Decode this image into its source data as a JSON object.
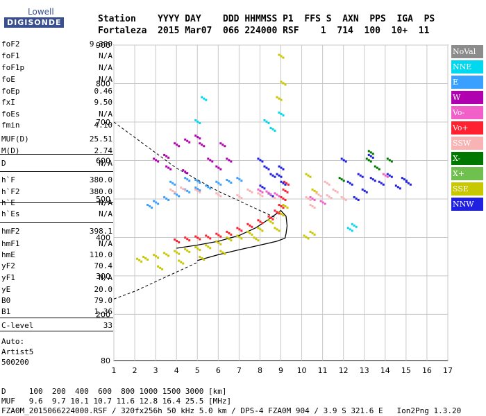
{
  "logo": {
    "top": "Lowell",
    "main": "DIGISONDE"
  },
  "header": {
    "line1": "Station    YYYY DAY    DDD HHMMSS P1  FFS S  AXN  PPS  IGA  PS",
    "line2": "Fortaleza  2015 Mar07  066 224000 RSF    1  714  100  10+  11"
  },
  "params": [
    {
      "name": "foF2",
      "value": "9.300"
    },
    {
      "name": "foF1",
      "value": "N/A"
    },
    {
      "name": "foF1p",
      "value": "N/A"
    },
    {
      "name": "foE",
      "value": "N/A"
    },
    {
      "name": "foEp",
      "value": "0.46"
    },
    {
      "name": "fxI",
      "value": "9.50"
    },
    {
      "name": "foEs",
      "value": "N/A"
    },
    {
      "name": "fmin",
      "value": "4.10"
    },
    {
      "name": "MUF(D)",
      "value": "25.51"
    },
    {
      "name": "M(D)",
      "value": "2.74"
    },
    {
      "name": "D",
      "value": "N/A"
    },
    {
      "name": "h`F",
      "value": "380.0"
    },
    {
      "name": "h`F2",
      "value": "380.0"
    },
    {
      "name": "h`E",
      "value": "N/A"
    },
    {
      "name": "h`Es",
      "value": "N/A"
    },
    {
      "name": "hmF2",
      "value": "398.1"
    },
    {
      "name": "hmF1",
      "value": "N/A"
    },
    {
      "name": "hmE",
      "value": "110.0"
    },
    {
      "name": "yF2",
      "value": "70.4"
    },
    {
      "name": "yF1",
      "value": "N/A"
    },
    {
      "name": "yE",
      "value": "20.0"
    },
    {
      "name": "B0",
      "value": "79.0"
    },
    {
      "name": "B1",
      "value": "1.36"
    },
    {
      "name": "C-level",
      "value": "33"
    }
  ],
  "autoscaling": {
    "line1": "Auto:",
    "line2": "Artist5",
    "line3": "500200"
  },
  "legend": [
    {
      "label": "NoVal",
      "color": "#8c8c8c"
    },
    {
      "label": "NNE",
      "color": "#00d8f0"
    },
    {
      "label": "E",
      "color": "#3aa0ff"
    },
    {
      "label": "W",
      "color": "#b000b0"
    },
    {
      "label": "Vo-",
      "color": "#f060c8"
    },
    {
      "label": "Vo+",
      "color": "#ff2030"
    },
    {
      "label": "SSW",
      "color": "#f8b4b4"
    },
    {
      "label": "X-",
      "color": "#007800"
    },
    {
      "label": "X+",
      "color": "#70c050"
    },
    {
      "label": "SSE",
      "color": "#c8c800"
    },
    {
      "label": "NNW",
      "color": "#2020e0"
    }
  ],
  "footer": {
    "d_line": "D     100  200  400  600  800 1000 1500 3000 [km]",
    "muf_line": "MUF   9.6  9.7 10.1 10.7 11.6 12.8 16.4 25.5 [MHz]",
    "file_line": "FZA0M_2015066224000.RSF / 320fx256h 50 kHz 5.0 km / DPS-4 FZA0M 904 / 3.9 S 321.6 E   Ion2Png 1.3.20"
  },
  "chart_data": {
    "type": "scatter",
    "xlim": [
      1,
      17
    ],
    "ylim": [
      80,
      900
    ],
    "x_ticks": [
      1,
      2,
      3,
      4,
      5,
      6,
      7,
      8,
      9,
      10,
      11,
      12,
      13,
      14,
      15,
      16,
      17
    ],
    "y_ticks": [
      80,
      200,
      300,
      400,
      500,
      600,
      700,
      800,
      900
    ],
    "grid": true,
    "series": [
      {
        "color": "#c8c800",
        "points": [
          [
            2.2,
            340
          ],
          [
            2.5,
            345
          ],
          [
            3.0,
            350
          ],
          [
            3.5,
            355
          ],
          [
            4.0,
            360
          ],
          [
            4.5,
            365
          ],
          [
            5.0,
            370
          ],
          [
            5.5,
            375
          ],
          [
            6.0,
            385
          ],
          [
            6.5,
            395
          ],
          [
            7.0,
            400
          ],
          [
            7.5,
            410
          ],
          [
            8.0,
            420
          ],
          [
            8.5,
            440
          ],
          [
            9.0,
            460
          ],
          [
            9.2,
            480
          ],
          [
            3.2,
            320
          ],
          [
            4.2,
            335
          ],
          [
            5.2,
            345
          ],
          [
            6.2,
            360
          ],
          [
            7.8,
            395
          ],
          [
            8.8,
            420
          ],
          [
            9.1,
            800
          ],
          [
            9.0,
            870
          ],
          [
            8.9,
            760
          ],
          [
            10.2,
            400
          ],
          [
            10.5,
            410
          ],
          [
            10.3,
            560
          ],
          [
            10.6,
            520
          ]
        ]
      },
      {
        "color": "#ff2030",
        "points": [
          [
            4.0,
            390
          ],
          [
            4.5,
            395
          ],
          [
            5.0,
            398
          ],
          [
            5.5,
            400
          ],
          [
            6.0,
            405
          ],
          [
            6.5,
            410
          ],
          [
            7.0,
            420
          ],
          [
            7.5,
            430
          ],
          [
            8.0,
            440
          ],
          [
            8.5,
            450
          ],
          [
            8.8,
            465
          ],
          [
            9.0,
            480
          ],
          [
            9.1,
            500
          ],
          [
            9.2,
            520
          ],
          [
            9.25,
            540
          ]
        ]
      },
      {
        "color": "#b000b0",
        "points": [
          [
            3.0,
            600
          ],
          [
            3.5,
            610
          ],
          [
            4.0,
            640
          ],
          [
            4.5,
            650
          ],
          [
            5.0,
            660
          ],
          [
            5.2,
            640
          ],
          [
            5.6,
            600
          ],
          [
            6.0,
            580
          ],
          [
            6.5,
            600
          ],
          [
            6.2,
            640
          ],
          [
            3.6,
            580
          ],
          [
            4.4,
            570
          ]
        ]
      },
      {
        "color": "#3aa0ff",
        "points": [
          [
            2.7,
            480
          ],
          [
            3.0,
            490
          ],
          [
            3.5,
            500
          ],
          [
            4.0,
            510
          ],
          [
            4.5,
            520
          ],
          [
            5.0,
            525
          ],
          [
            5.5,
            530
          ],
          [
            6.0,
            540
          ],
          [
            6.5,
            545
          ],
          [
            7.0,
            550
          ],
          [
            4.5,
            550
          ],
          [
            5.0,
            545
          ],
          [
            3.8,
            540
          ]
        ]
      },
      {
        "color": "#f8b4b4",
        "points": [
          [
            3.8,
            520
          ],
          [
            4.3,
            525
          ],
          [
            5.0,
            520
          ],
          [
            6.0,
            510
          ],
          [
            7.0,
            505
          ],
          [
            7.5,
            520
          ],
          [
            8.0,
            510
          ],
          [
            8.6,
            505
          ],
          [
            10.3,
            500
          ],
          [
            10.8,
            510
          ],
          [
            11.3,
            505
          ],
          [
            11.6,
            520
          ],
          [
            12.0,
            500
          ],
          [
            10.5,
            480
          ],
          [
            11.2,
            540
          ]
        ]
      },
      {
        "color": "#2020e0",
        "points": [
          [
            8.0,
            600
          ],
          [
            8.3,
            580
          ],
          [
            8.6,
            560
          ],
          [
            8.9,
            560
          ],
          [
            9.0,
            580
          ],
          [
            8.1,
            530
          ],
          [
            8.5,
            510
          ],
          [
            9.1,
            540
          ],
          [
            12.3,
            540
          ],
          [
            12.8,
            560
          ],
          [
            13.0,
            520
          ],
          [
            13.4,
            550
          ],
          [
            13.8,
            540
          ],
          [
            14.2,
            560
          ],
          [
            14.6,
            530
          ],
          [
            14.9,
            550
          ],
          [
            15.1,
            540
          ],
          [
            12.0,
            600
          ],
          [
            13.3,
            610
          ],
          [
            12.6,
            500
          ]
        ]
      },
      {
        "color": "#00d8f0",
        "points": [
          [
            5.0,
            700
          ],
          [
            5.3,
            760
          ],
          [
            8.3,
            700
          ],
          [
            8.6,
            680
          ],
          [
            9.0,
            720
          ],
          [
            12.3,
            420
          ],
          [
            12.5,
            430
          ]
        ]
      },
      {
        "color": "#f060c8",
        "points": [
          [
            8.0,
            520
          ],
          [
            8.4,
            515
          ],
          [
            8.8,
            510
          ],
          [
            10.5,
            500
          ],
          [
            11.0,
            490
          ],
          [
            14.0,
            560
          ]
        ]
      },
      {
        "color": "#007800",
        "points": [
          [
            13.2,
            600
          ],
          [
            13.3,
            620
          ],
          [
            13.6,
            580
          ],
          [
            11.9,
            550
          ],
          [
            14.2,
            600
          ]
        ]
      }
    ],
    "profile_solid": [
      [
        5.0,
        340
      ],
      [
        6.0,
        355
      ],
      [
        7.0,
        368
      ],
      [
        8.0,
        380
      ],
      [
        8.8,
        390
      ],
      [
        9.2,
        398
      ],
      [
        9.25,
        410
      ],
      [
        9.3,
        430
      ],
      [
        9.25,
        455
      ],
      [
        9.0,
        470
      ],
      [
        8.5,
        450
      ],
      [
        7.8,
        425
      ],
      [
        7.0,
        405
      ],
      [
        6.0,
        390
      ],
      [
        5.0,
        380
      ],
      [
        4.0,
        372
      ]
    ],
    "profile_dashed": [
      [
        1.0,
        240
      ],
      [
        2.0,
        260
      ],
      [
        3.0,
        285
      ],
      [
        4.0,
        310
      ],
      [
        5.0,
        335
      ],
      [
        1.0,
        700
      ],
      [
        2.0,
        660
      ],
      [
        3.0,
        620
      ],
      [
        4.0,
        580
      ],
      [
        5.0,
        550
      ],
      [
        6.0,
        520
      ],
      [
        7.0,
        495
      ],
      [
        8.0,
        470
      ],
      [
        8.8,
        450
      ]
    ]
  }
}
